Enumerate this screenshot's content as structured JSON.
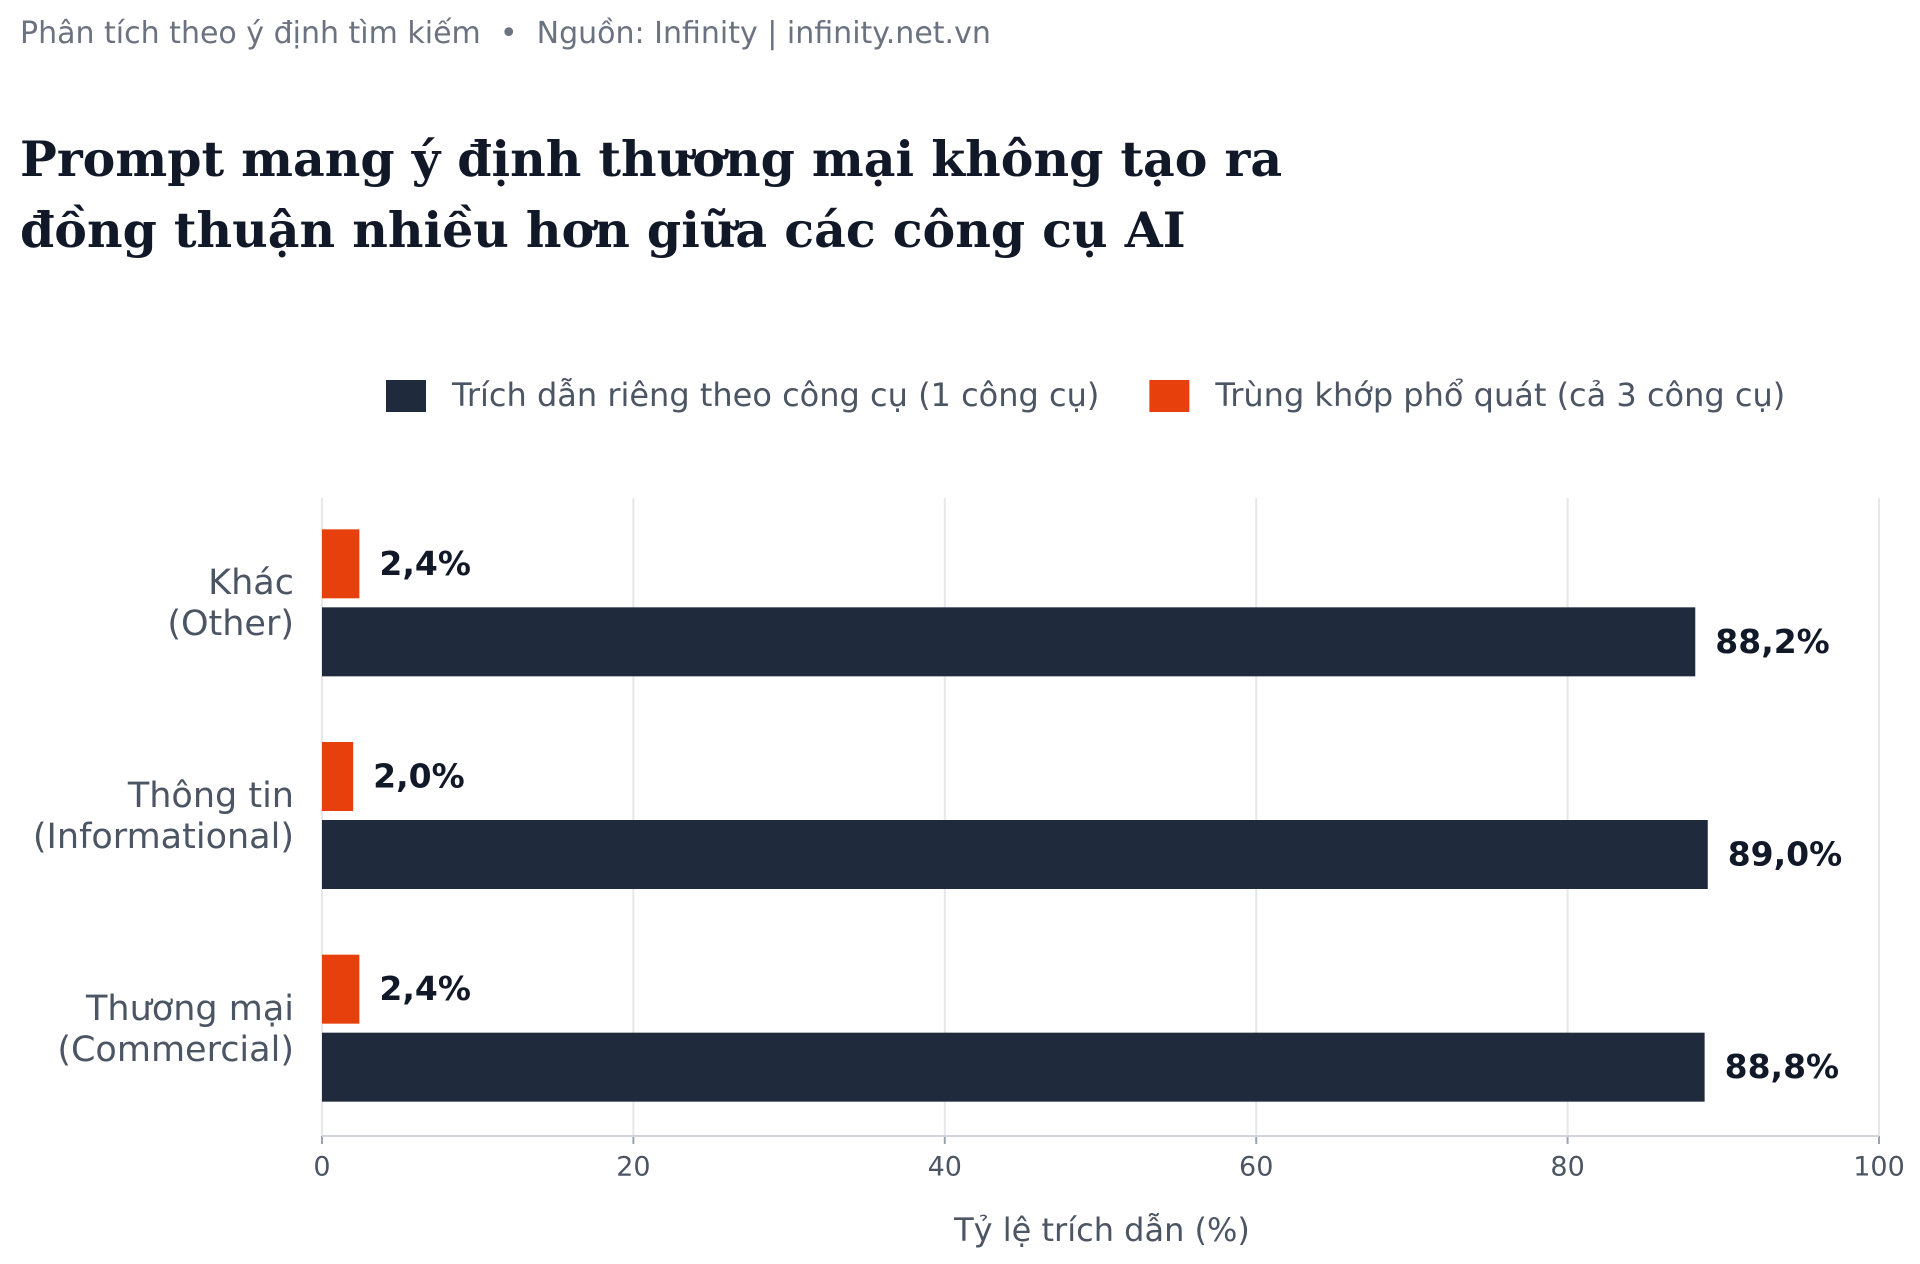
{
  "chart_data": {
    "type": "hbar",
    "subtitle": "Phân tích theo ý định tìm kiếm  •  Nguồn: Infinity | infinity.net.vn",
    "title": "Prompt mang ý định thương mại không tạo ra\nđồng thuận nhiều hơn giữa các công cụ AI",
    "categories": [
      "Khác\n(Other)",
      "Thông tin\n(Informational)",
      "Thương mại\n(Commercial)"
    ],
    "series": [
      {
        "name": "Trích dẫn riêng theo công cụ (1 công cụ)",
        "color": "#1f2a3c",
        "values": [
          88.2,
          89.0,
          88.8
        ],
        "value_labels": [
          "88,2%",
          "89,0%",
          "88,8%"
        ]
      },
      {
        "name": "Trùng khớp phổ quát (cả 3 công cụ)",
        "color": "#e8400c",
        "values": [
          2.4,
          2.0,
          2.4
        ],
        "value_labels": [
          "2,4%",
          "2,0%",
          "2,4%"
        ]
      }
    ],
    "xlabel": "Tỷ lệ trích dẫn (%)",
    "xlim": [
      0,
      100
    ],
    "xticks": [
      0,
      20,
      40,
      60,
      80,
      100
    ],
    "grid": true
  }
}
